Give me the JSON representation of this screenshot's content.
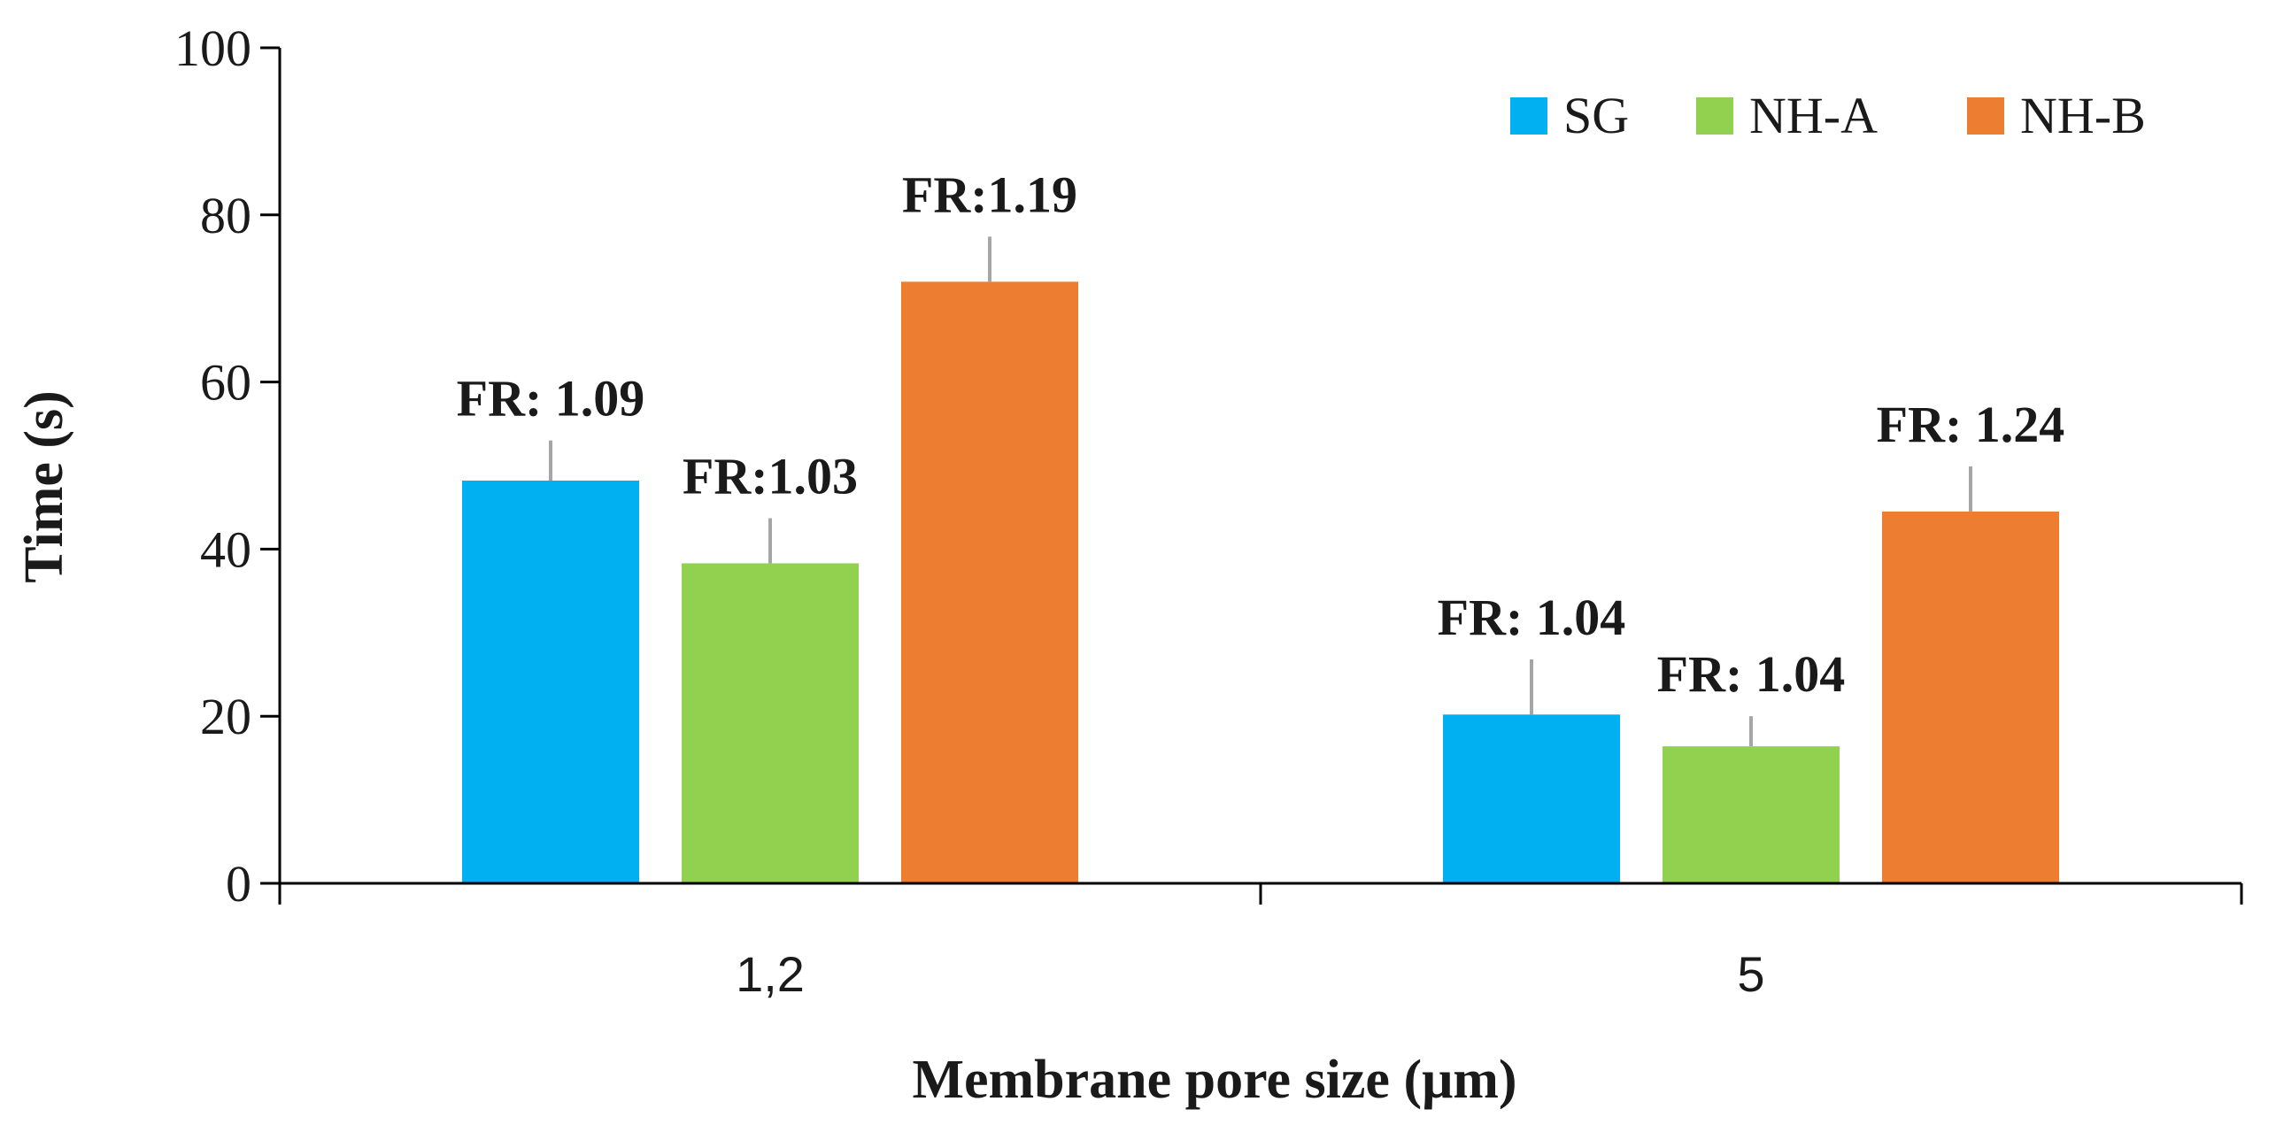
{
  "chart_data": {
    "type": "bar",
    "title": "",
    "xlabel": "Membrane pore size (μm)",
    "ylabel": "Time (s)",
    "ylim": [
      0,
      100
    ],
    "yticks": [
      "0",
      "20",
      "40",
      "60",
      "80",
      "100"
    ],
    "categories": [
      "1,2",
      "5"
    ],
    "legend_position": "top-right",
    "series": [
      {
        "name": "SG",
        "color": "#00b0f0",
        "values": [
          48.2,
          20.2
        ],
        "errors": [
          4.8,
          6.6
        ],
        "labels": [
          "FR: 1.09",
          "FR: 1.04"
        ]
      },
      {
        "name": "NH-A",
        "color": "#92d050",
        "values": [
          38.3,
          16.4
        ],
        "errors": [
          5.4,
          3.6
        ],
        "labels": [
          "FR:1.03",
          "FR: 1.04"
        ]
      },
      {
        "name": "NH-B",
        "color": "#ed7d31",
        "values": [
          72.0,
          44.5
        ],
        "errors": [
          5.4,
          5.4
        ],
        "labels": [
          "FR:1.19",
          "FR: 1.24"
        ]
      }
    ],
    "errorbar_color": "#a6a6a6"
  }
}
